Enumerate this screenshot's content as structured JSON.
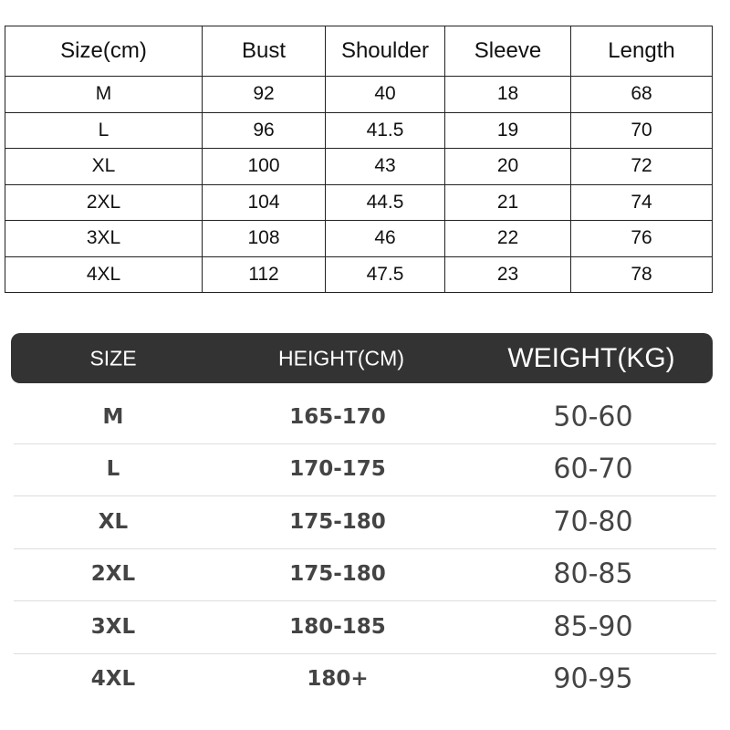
{
  "measurements": {
    "headers": [
      "Size(cm)",
      "Bust",
      "Shoulder",
      "Sleeve",
      "Length"
    ],
    "rows": [
      [
        "M",
        "92",
        "40",
        "18",
        "68"
      ],
      [
        "L",
        "96",
        "41.5",
        "19",
        "70"
      ],
      [
        "XL",
        "100",
        "43",
        "20",
        "72"
      ],
      [
        "2XL",
        "104",
        "44.5",
        "21",
        "74"
      ],
      [
        "3XL",
        "108",
        "46",
        "22",
        "76"
      ],
      [
        "4XL",
        "112",
        "47.5",
        "23",
        "78"
      ]
    ]
  },
  "recommendation": {
    "headers": [
      "SIZE",
      "HEIGHT(CM)",
      "WEIGHT(KG)"
    ],
    "rows": [
      [
        "M",
        "165-170",
        "50-60"
      ],
      [
        "L",
        "170-175",
        "60-70"
      ],
      [
        "XL",
        "175-180",
        "70-80"
      ],
      [
        "2XL",
        "175-180",
        "80-85"
      ],
      [
        "3XL",
        "180-185",
        "85-90"
      ],
      [
        "4XL",
        "180+",
        "90-95"
      ]
    ],
    "header_color": "#333333"
  }
}
